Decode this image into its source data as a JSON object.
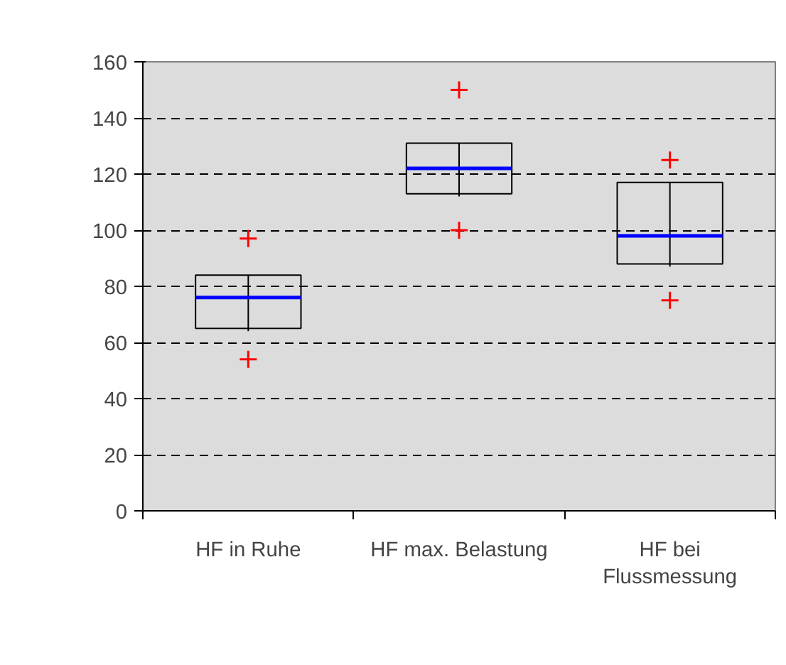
{
  "chart_data": {
    "type": "box",
    "categories": [
      "HF in Ruhe",
      "HF max. Belastung",
      "HF bei Flussmessung"
    ],
    "boxes": [
      {
        "low": 64,
        "q1": 65,
        "median": 76,
        "q3": 84,
        "high": 84,
        "outliers": [
          97,
          54
        ]
      },
      {
        "low": 112,
        "q1": 113,
        "median": 122,
        "q3": 131,
        "high": 131,
        "outliers": [
          150,
          100
        ]
      },
      {
        "low": 87,
        "q1": 88,
        "median": 98,
        "q3": 117,
        "high": 117,
        "outliers": [
          125,
          75
        ]
      }
    ],
    "ylim": [
      0,
      160
    ],
    "yticks": [
      0,
      20,
      40,
      60,
      80,
      100,
      120,
      140,
      160
    ],
    "grid": "y",
    "marker": "cross"
  }
}
